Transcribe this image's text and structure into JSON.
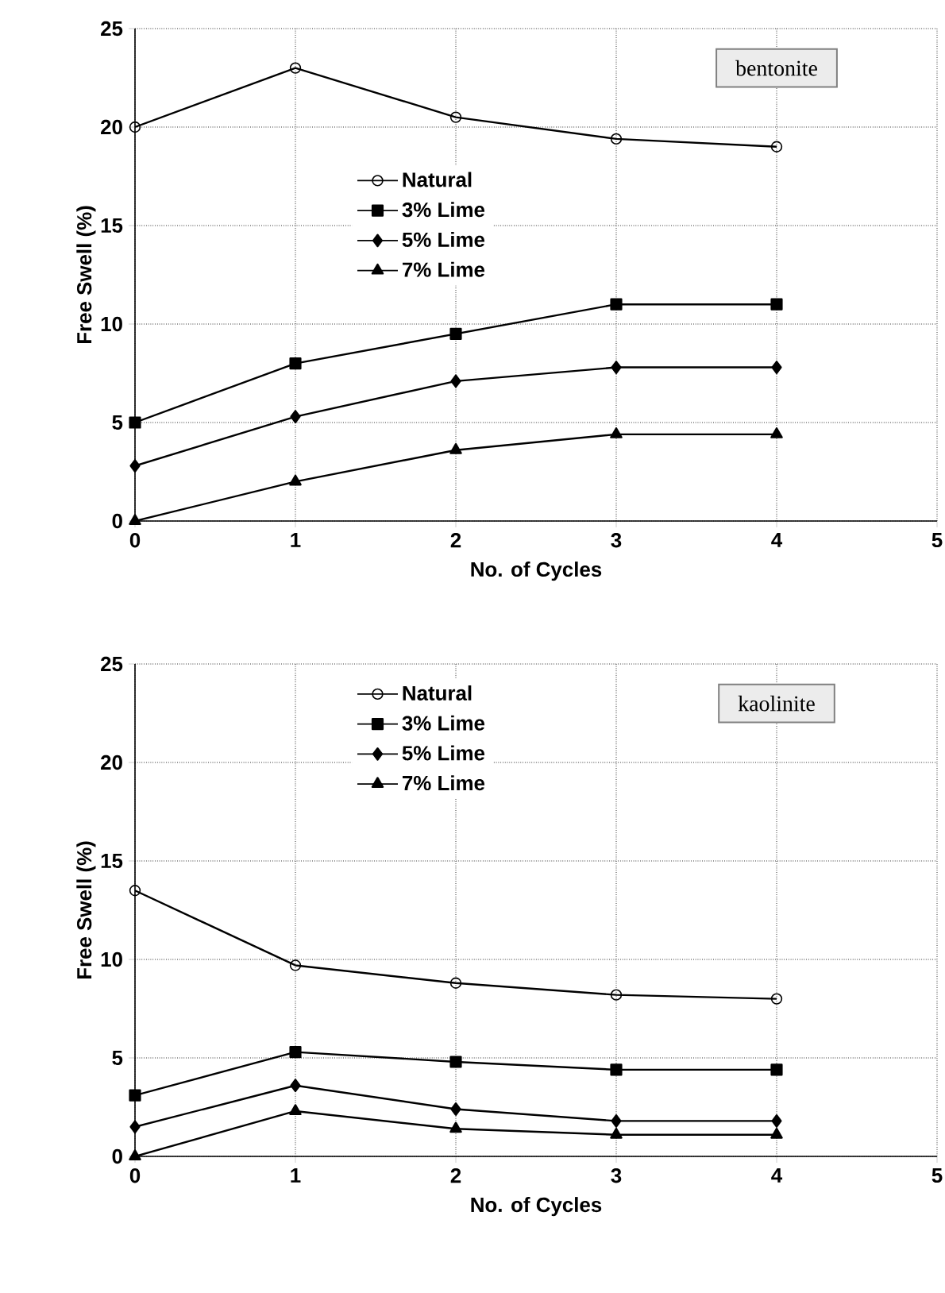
{
  "chart_data": [
    {
      "type": "line",
      "xlabel": "No. of Cycles",
      "ylabel": "Free Swell (%)",
      "x": [
        0,
        1,
        2,
        3,
        4
      ],
      "xlim": [
        0,
        5
      ],
      "ylim": [
        0,
        25
      ],
      "xticks": [
        0,
        1,
        2,
        3,
        4,
        5
      ],
      "yticks": [
        0,
        5,
        10,
        15,
        20,
        25
      ],
      "grid": true,
      "legend": "left",
      "line_style": "solid",
      "annotations": [
        "bentonite"
      ],
      "series": [
        {
          "name": "Natural",
          "color": "#000000",
          "marker": "circle",
          "values": [
            20,
            23,
            20.5,
            19.4,
            19
          ]
        },
        {
          "name": "3% Lime",
          "color": "#000000",
          "marker": "square",
          "values": [
            5,
            8,
            9.5,
            11,
            11
          ]
        },
        {
          "name": "5% Lime",
          "color": "#000000",
          "marker": "diamond",
          "values": [
            2.8,
            5.3,
            7.1,
            7.8,
            7.8
          ]
        },
        {
          "name": "7% Lime",
          "color": "#000000",
          "marker": "triangle",
          "values": [
            0,
            2,
            3.6,
            4.4,
            4.4
          ]
        }
      ]
    },
    {
      "type": "line",
      "xlabel": "No. of Cycles",
      "ylabel": "Free Swell (%)",
      "x": [
        0,
        1,
        2,
        3,
        4
      ],
      "xlim": [
        0,
        5
      ],
      "ylim": [
        0,
        25
      ],
      "xticks": [
        0,
        1,
        2,
        3,
        4,
        5
      ],
      "yticks": [
        0,
        5,
        10,
        15,
        20,
        25
      ],
      "grid": true,
      "legend": "top left",
      "line_style": "solid",
      "annotations": [
        "kaolinite"
      ],
      "series": [
        {
          "name": "Natural",
          "color": "#000000",
          "marker": "circle",
          "values": [
            13.5,
            9.7,
            8.8,
            8.2,
            8
          ]
        },
        {
          "name": "3% Lime",
          "color": "#000000",
          "marker": "square",
          "values": [
            3.1,
            5.3,
            4.8,
            4.4,
            4.4
          ]
        },
        {
          "name": "5% Lime",
          "color": "#000000",
          "marker": "diamond",
          "values": [
            1.5,
            3.6,
            2.4,
            1.8,
            1.8
          ]
        },
        {
          "name": "7% Lime",
          "color": "#000000",
          "marker": "triangle",
          "values": [
            0,
            2.3,
            1.4,
            1.1,
            1.1
          ]
        }
      ]
    }
  ]
}
